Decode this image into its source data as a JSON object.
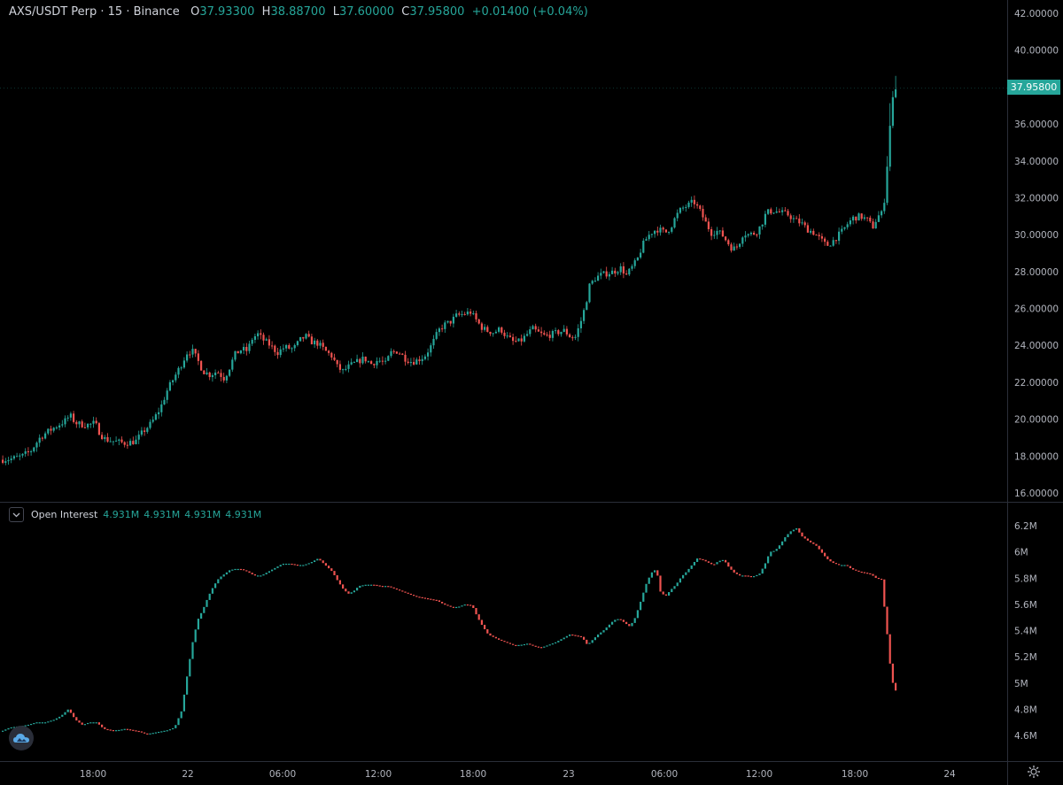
{
  "header": {
    "symbol": "AXS/USDT Perp · 15 · Binance",
    "open_label": "O",
    "open": "37.93300",
    "high_label": "H",
    "high": "38.88700",
    "low_label": "L",
    "low": "37.60000",
    "close_label": "C",
    "close": "37.95800",
    "change": "+0.01400 (+0.04%)"
  },
  "colors": {
    "up": "#26a69a",
    "down": "#ef5350",
    "background": "#000000",
    "axis_text": "#b2b5be"
  },
  "last_price_label": "37.95800",
  "indicator": {
    "title": "Open Interest",
    "values": [
      "4.931M",
      "4.931M",
      "4.931M",
      "4.931M"
    ],
    "toggle_icon": "chevron-down-icon"
  },
  "logo_icon": "cloud-logo-icon",
  "settings_icon": "gear-icon",
  "chart_data": [
    {
      "type": "candlestick",
      "title": "AXS/USDT Perp · 15 · Binance",
      "yaxis_ticks": [
        "16.00000",
        "18.00000",
        "20.00000",
        "22.00000",
        "24.00000",
        "26.00000",
        "28.00000",
        "30.00000",
        "32.00000",
        "34.00000",
        "36.00000",
        "38.00000",
        "40.00000",
        "42.00000"
      ],
      "ylim": [
        15.5,
        42.5
      ],
      "x_ticks": [
        "18:00",
        "22",
        "06:00",
        "12:00",
        "18:00",
        "23",
        "06:00",
        "12:00",
        "18:00",
        "24"
      ],
      "last_price": 37.958,
      "path": [
        [
          0,
          17.8
        ],
        [
          12,
          17.85
        ],
        [
          24,
          18.0
        ],
        [
          34,
          18.3
        ],
        [
          44,
          19.0
        ],
        [
          52,
          19.3
        ],
        [
          62,
          19.6
        ],
        [
          72,
          19.9
        ],
        [
          78,
          20.2
        ],
        [
          84,
          19.8
        ],
        [
          92,
          19.7
        ],
        [
          100,
          19.7
        ],
        [
          106,
          19.8
        ],
        [
          112,
          19.2
        ],
        [
          118,
          18.9
        ],
        [
          128,
          18.8
        ],
        [
          140,
          18.7
        ],
        [
          152,
          18.8
        ],
        [
          160,
          19.3
        ],
        [
          170,
          19.8
        ],
        [
          180,
          20.6
        ],
        [
          188,
          21.6
        ],
        [
          196,
          22.3
        ],
        [
          204,
          23.0
        ],
        [
          210,
          23.6
        ],
        [
          216,
          23.7
        ],
        [
          222,
          23.2
        ],
        [
          228,
          22.6
        ],
        [
          236,
          22.4
        ],
        [
          244,
          22.6
        ],
        [
          252,
          22.2
        ],
        [
          258,
          22.8
        ],
        [
          264,
          23.5
        ],
        [
          272,
          23.8
        ],
        [
          278,
          23.7
        ],
        [
          284,
          24.4
        ],
        [
          290,
          24.6
        ],
        [
          296,
          24.3
        ],
        [
          304,
          24.0
        ],
        [
          312,
          23.6
        ],
        [
          320,
          23.9
        ],
        [
          330,
          23.8
        ],
        [
          338,
          24.3
        ],
        [
          344,
          24.5
        ],
        [
          350,
          24.2
        ],
        [
          358,
          24.1
        ],
        [
          366,
          23.7
        ],
        [
          374,
          23.4
        ],
        [
          380,
          22.8
        ],
        [
          386,
          22.6
        ],
        [
          394,
          22.9
        ],
        [
          402,
          23.1
        ],
        [
          410,
          23.3
        ],
        [
          418,
          23.0
        ],
        [
          426,
          23.2
        ],
        [
          434,
          23.0
        ],
        [
          440,
          23.6
        ],
        [
          448,
          23.7
        ],
        [
          456,
          23.3
        ],
        [
          464,
          23.1
        ],
        [
          470,
          23.2
        ],
        [
          478,
          23.4
        ],
        [
          486,
          24.0
        ],
        [
          494,
          24.8
        ],
        [
          500,
          25.1
        ],
        [
          508,
          25.3
        ],
        [
          514,
          25.6
        ],
        [
          522,
          25.7
        ],
        [
          530,
          25.8
        ],
        [
          536,
          25.4
        ],
        [
          542,
          25.0
        ],
        [
          548,
          24.8
        ],
        [
          556,
          24.7
        ],
        [
          564,
          24.9
        ],
        [
          570,
          24.5
        ],
        [
          578,
          24.2
        ],
        [
          586,
          24.2
        ],
        [
          594,
          24.6
        ],
        [
          600,
          24.9
        ],
        [
          606,
          24.7
        ],
        [
          614,
          24.5
        ],
        [
          622,
          24.6
        ],
        [
          628,
          24.7
        ],
        [
          636,
          24.8
        ],
        [
          642,
          24.5
        ],
        [
          648,
          24.4
        ],
        [
          654,
          25.2
        ],
        [
          660,
          26.2
        ],
        [
          664,
          27.2
        ],
        [
          670,
          27.6
        ],
        [
          676,
          27.8
        ],
        [
          684,
          27.9
        ],
        [
          692,
          28.0
        ],
        [
          700,
          28.2
        ],
        [
          706,
          27.8
        ],
        [
          712,
          28.2
        ],
        [
          718,
          28.6
        ],
        [
          724,
          29.4
        ],
        [
          730,
          29.9
        ],
        [
          736,
          30.2
        ],
        [
          742,
          30.3
        ],
        [
          750,
          30.1
        ],
        [
          756,
          30.4
        ],
        [
          762,
          31.0
        ],
        [
          768,
          31.4
        ],
        [
          776,
          31.6
        ],
        [
          782,
          31.8
        ],
        [
          790,
          31.2
        ],
        [
          796,
          30.6
        ],
        [
          802,
          30.1
        ],
        [
          808,
          30.2
        ],
        [
          814,
          30.0
        ],
        [
          820,
          29.6
        ],
        [
          826,
          29.2
        ],
        [
          832,
          29.4
        ],
        [
          838,
          30.1
        ],
        [
          844,
          30.0
        ],
        [
          852,
          30.1
        ],
        [
          858,
          30.5
        ],
        [
          864,
          31.2
        ],
        [
          872,
          31.3
        ],
        [
          880,
          31.2
        ],
        [
          888,
          31.1
        ],
        [
          896,
          30.8
        ],
        [
          904,
          30.6
        ],
        [
          910,
          30.3
        ],
        [
          918,
          30.1
        ],
        [
          926,
          29.7
        ],
        [
          932,
          29.4
        ],
        [
          938,
          29.6
        ],
        [
          944,
          29.9
        ],
        [
          950,
          30.2
        ],
        [
          956,
          30.6
        ],
        [
          962,
          30.9
        ],
        [
          970,
          31.0
        ],
        [
          978,
          30.8
        ],
        [
          984,
          30.4
        ],
        [
          990,
          31.0
        ],
        [
          996,
          31.2
        ],
        [
          1000,
          33.5
        ],
        [
          1004,
          36.2
        ],
        [
          1008,
          37.8
        ],
        [
          1013,
          37.958
        ]
      ]
    },
    {
      "type": "bar",
      "title": "Open Interest",
      "yaxis_ticks": [
        "4.6M",
        "4.8M",
        "5M",
        "5.2M",
        "5.4M",
        "5.6M",
        "5.8M",
        "6M",
        "6.2M"
      ],
      "ylim": [
        4.5,
        6.27
      ],
      "last_value": 4.931,
      "path": [
        [
          0,
          4.63
        ],
        [
          10,
          4.66
        ],
        [
          20,
          4.67
        ],
        [
          30,
          4.68
        ],
        [
          40,
          4.7
        ],
        [
          50,
          4.7
        ],
        [
          60,
          4.72
        ],
        [
          68,
          4.75
        ],
        [
          76,
          4.8
        ],
        [
          84,
          4.72
        ],
        [
          92,
          4.68
        ],
        [
          100,
          4.7
        ],
        [
          108,
          4.7
        ],
        [
          116,
          4.65
        ],
        [
          124,
          4.64
        ],
        [
          132,
          4.64
        ],
        [
          140,
          4.65
        ],
        [
          148,
          4.64
        ],
        [
          156,
          4.63
        ],
        [
          164,
          4.61
        ],
        [
          172,
          4.62
        ],
        [
          180,
          4.63
        ],
        [
          188,
          4.64
        ],
        [
          196,
          4.66
        ],
        [
          204,
          4.79
        ],
        [
          210,
          5.05
        ],
        [
          216,
          5.3
        ],
        [
          222,
          5.48
        ],
        [
          228,
          5.56
        ],
        [
          234,
          5.66
        ],
        [
          240,
          5.74
        ],
        [
          246,
          5.8
        ],
        [
          252,
          5.83
        ],
        [
          258,
          5.86
        ],
        [
          264,
          5.87
        ],
        [
          270,
          5.87
        ],
        [
          278,
          5.85
        ],
        [
          286,
          5.82
        ],
        [
          294,
          5.82
        ],
        [
          302,
          5.85
        ],
        [
          310,
          5.88
        ],
        [
          318,
          5.91
        ],
        [
          326,
          5.91
        ],
        [
          334,
          5.9
        ],
        [
          342,
          5.9
        ],
        [
          350,
          5.92
        ],
        [
          358,
          5.95
        ],
        [
          366,
          5.9
        ],
        [
          374,
          5.85
        ],
        [
          380,
          5.78
        ],
        [
          386,
          5.72
        ],
        [
          392,
          5.68
        ],
        [
          398,
          5.7
        ],
        [
          404,
          5.74
        ],
        [
          412,
          5.75
        ],
        [
          420,
          5.75
        ],
        [
          428,
          5.74
        ],
        [
          436,
          5.74
        ],
        [
          444,
          5.72
        ],
        [
          452,
          5.7
        ],
        [
          460,
          5.68
        ],
        [
          468,
          5.66
        ],
        [
          476,
          5.65
        ],
        [
          484,
          5.64
        ],
        [
          492,
          5.63
        ],
        [
          500,
          5.6
        ],
        [
          508,
          5.58
        ],
        [
          516,
          5.58
        ],
        [
          524,
          5.6
        ],
        [
          532,
          5.59
        ],
        [
          538,
          5.5
        ],
        [
          544,
          5.43
        ],
        [
          550,
          5.37
        ],
        [
          556,
          5.35
        ],
        [
          562,
          5.33
        ],
        [
          570,
          5.31
        ],
        [
          578,
          5.29
        ],
        [
          586,
          5.29
        ],
        [
          594,
          5.3
        ],
        [
          602,
          5.28
        ],
        [
          610,
          5.27
        ],
        [
          618,
          5.29
        ],
        [
          626,
          5.31
        ],
        [
          634,
          5.34
        ],
        [
          642,
          5.37
        ],
        [
          650,
          5.36
        ],
        [
          656,
          5.35
        ],
        [
          662,
          5.29
        ],
        [
          668,
          5.33
        ],
        [
          674,
          5.37
        ],
        [
          680,
          5.4
        ],
        [
          686,
          5.44
        ],
        [
          692,
          5.48
        ],
        [
          698,
          5.49
        ],
        [
          704,
          5.46
        ],
        [
          710,
          5.43
        ],
        [
          716,
          5.5
        ],
        [
          722,
          5.62
        ],
        [
          728,
          5.75
        ],
        [
          734,
          5.84
        ],
        [
          740,
          5.87
        ],
        [
          744,
          5.7
        ],
        [
          750,
          5.66
        ],
        [
          756,
          5.71
        ],
        [
          762,
          5.75
        ],
        [
          768,
          5.81
        ],
        [
          774,
          5.85
        ],
        [
          780,
          5.9
        ],
        [
          786,
          5.95
        ],
        [
          792,
          5.94
        ],
        [
          798,
          5.92
        ],
        [
          804,
          5.9
        ],
        [
          810,
          5.93
        ],
        [
          816,
          5.94
        ],
        [
          822,
          5.88
        ],
        [
          828,
          5.84
        ],
        [
          834,
          5.82
        ],
        [
          840,
          5.82
        ],
        [
          848,
          5.81
        ],
        [
          856,
          5.83
        ],
        [
          862,
          5.9
        ],
        [
          868,
          6.0
        ],
        [
          874,
          6.01
        ],
        [
          880,
          6.06
        ],
        [
          886,
          6.12
        ],
        [
          892,
          6.16
        ],
        [
          898,
          6.18
        ],
        [
          904,
          6.12
        ],
        [
          912,
          6.08
        ],
        [
          920,
          6.05
        ],
        [
          926,
          6.0
        ],
        [
          932,
          5.95
        ],
        [
          938,
          5.92
        ],
        [
          946,
          5.9
        ],
        [
          954,
          5.9
        ],
        [
          960,
          5.87
        ],
        [
          968,
          5.85
        ],
        [
          976,
          5.84
        ],
        [
          982,
          5.83
        ],
        [
          988,
          5.8
        ],
        [
          994,
          5.79
        ],
        [
          1000,
          5.4
        ],
        [
          1004,
          5.12
        ],
        [
          1008,
          4.95
        ],
        [
          1013,
          4.931
        ]
      ]
    }
  ]
}
